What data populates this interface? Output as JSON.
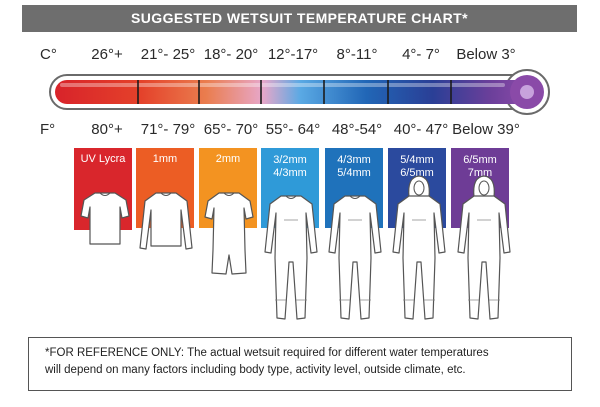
{
  "title": "SUGGESTED WETSUIT TEMPERATURE CHART*",
  "celsius_unit": "C°",
  "fahrenheit_unit": "F°",
  "columns": [
    {
      "celsius": "26°+",
      "fahrenheit": "80°+",
      "thickness_lines": [
        "UV Lycra"
      ],
      "color": "#d9262c",
      "suit": "rashguard"
    },
    {
      "celsius": "21°- 25°",
      "fahrenheit": "71°- 79°",
      "thickness_lines": [
        "1mm"
      ],
      "color": "#ec5d24",
      "suit": "long-sleeve-top"
    },
    {
      "celsius": "18°- 20°",
      "fahrenheit": "65°- 70°",
      "thickness_lines": [
        "2mm"
      ],
      "color": "#f39321",
      "suit": "shorty"
    },
    {
      "celsius": "12°-17°",
      "fahrenheit": "55°- 64°",
      "thickness_lines": [
        "3/2mm",
        "4/3mm"
      ],
      "color": "#2f9ad8",
      "suit": "full-suit"
    },
    {
      "celsius": "8°-11°",
      "fahrenheit": "48°-54°",
      "thickness_lines": [
        "4/3mm",
        "5/4mm"
      ],
      "color": "#1f72bb",
      "suit": "full-suit"
    },
    {
      "celsius": "4°- 7°",
      "fahrenheit": "40°- 47°",
      "thickness_lines": [
        "5/4mm",
        "6/5mm"
      ],
      "color": "#2b4a9e",
      "suit": "hooded-suit"
    },
    {
      "celsius": "Below 3°",
      "fahrenheit": "Below 39°",
      "thickness_lines": [
        "6/5mm",
        "7mm"
      ],
      "color": "#6e3c96",
      "suit": "hooded-suit"
    }
  ],
  "note_lines": [
    "*FOR REFERENCE ONLY: The actual wetsuit required for different water temperatures",
    "will depend on many factors including body type, activity level, outside climate, etc."
  ]
}
